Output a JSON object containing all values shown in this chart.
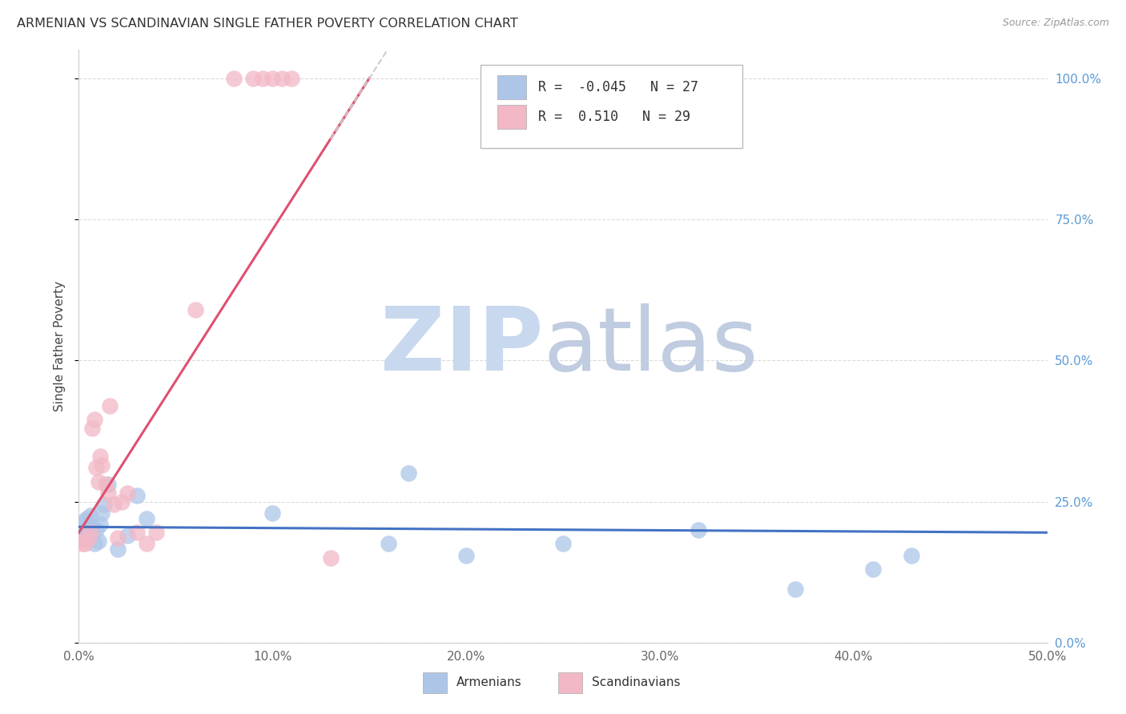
{
  "title": "ARMENIAN VS SCANDINAVIAN SINGLE FATHER POVERTY CORRELATION CHART",
  "source": "Source: ZipAtlas.com",
  "ylabel": "Single Father Poverty",
  "xlim": [
    0.0,
    0.5
  ],
  "ylim": [
    0.0,
    1.05
  ],
  "xticks": [
    0.0,
    0.1,
    0.2,
    0.3,
    0.4,
    0.5
  ],
  "yticks_right": [
    0.0,
    0.25,
    0.5,
    0.75,
    1.0
  ],
  "armenian_R": -0.045,
  "armenian_N": 27,
  "scandinavian_R": 0.51,
  "scandinavian_N": 29,
  "armenian_color": "#adc6e8",
  "scandinavian_color": "#f2b8c6",
  "armenian_line_color": "#4472c4",
  "scandinavian_line_color": "#e05070",
  "watermark_zip_color": "#c8d8ee",
  "watermark_atlas_color": "#c0cce0",
  "background_color": "#ffffff",
  "grid_color": "#cccccc",
  "title_color": "#333333",
  "source_color": "#999999",
  "tick_color": "#666666",
  "right_tick_color": "#5b9bd5",
  "armenian_x": [
    0.001,
    0.002,
    0.003,
    0.004,
    0.005,
    0.006,
    0.007,
    0.008,
    0.009,
    0.01,
    0.011,
    0.012,
    0.013,
    0.015,
    0.02,
    0.025,
    0.03,
    0.035,
    0.1,
    0.16,
    0.2,
    0.17,
    0.25,
    0.32,
    0.37,
    0.41,
    0.43
  ],
  "armenian_y": [
    0.195,
    0.185,
    0.215,
    0.22,
    0.2,
    0.225,
    0.205,
    0.175,
    0.2,
    0.18,
    0.21,
    0.23,
    0.245,
    0.28,
    0.165,
    0.19,
    0.26,
    0.22,
    0.23,
    0.175,
    0.155,
    0.3,
    0.175,
    0.2,
    0.095,
    0.13,
    0.155
  ],
  "scandinavian_x": [
    0.001,
    0.002,
    0.003,
    0.005,
    0.006,
    0.007,
    0.008,
    0.009,
    0.01,
    0.011,
    0.012,
    0.014,
    0.015,
    0.016,
    0.018,
    0.02,
    0.022,
    0.025,
    0.03,
    0.035,
    0.04,
    0.06,
    0.08,
    0.09,
    0.095,
    0.1,
    0.105,
    0.11,
    0.13
  ],
  "scandinavian_y": [
    0.18,
    0.175,
    0.175,
    0.185,
    0.195,
    0.38,
    0.395,
    0.31,
    0.285,
    0.33,
    0.315,
    0.28,
    0.265,
    0.42,
    0.245,
    0.185,
    0.25,
    0.265,
    0.195,
    0.175,
    0.195,
    0.59,
    1.0,
    1.0,
    1.0,
    1.0,
    1.0,
    1.0,
    0.15
  ],
  "arm_trend_x0": 0.0,
  "arm_trend_y0": 0.205,
  "arm_trend_x1": 0.5,
  "arm_trend_y1": 0.195,
  "sca_trend_x0": 0.0,
  "sca_trend_y0": 0.195,
  "sca_trend_x1": 0.15,
  "sca_trend_y1": 1.0
}
